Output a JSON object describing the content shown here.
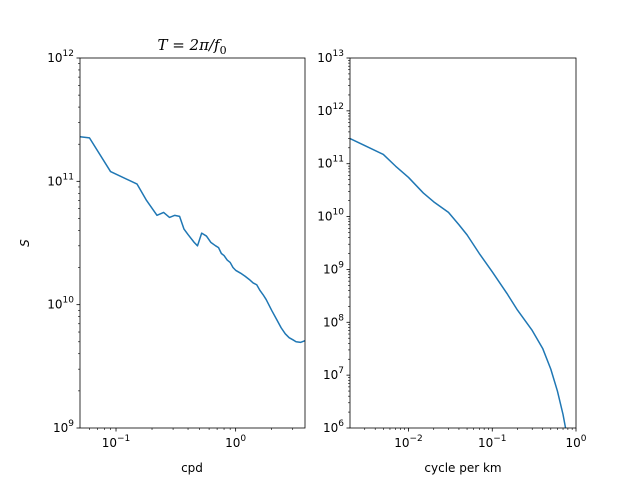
{
  "chart_data": [
    {
      "type": "line",
      "title": "T = 2π/f₀",
      "xlabel": "cpd",
      "ylabel": "S",
      "xscale": "log",
      "yscale": "log",
      "xlim": [
        0.05,
        3.8
      ],
      "ylim": [
        1000000000.0,
        1000000000000.0
      ],
      "grid": false,
      "color": "#1f77b4",
      "x_ticks": [
        {
          "value": 0.1,
          "base": "10",
          "exp": "−1"
        },
        {
          "value": 1,
          "base": "10",
          "exp": "0"
        }
      ],
      "y_ticks": [
        {
          "value": 1000000000.0,
          "base": "10",
          "exp": "9"
        },
        {
          "value": 10000000000.0,
          "base": "10",
          "exp": "10"
        },
        {
          "value": 100000000000.0,
          "base": "10",
          "exp": "11"
        },
        {
          "value": 1000000000000.0,
          "base": "10",
          "exp": "12"
        }
      ],
      "series": [
        {
          "x": [
            0.05,
            0.06,
            0.09,
            0.15,
            0.18,
            0.22,
            0.25,
            0.28,
            0.31,
            0.34,
            0.37,
            0.4,
            0.45,
            0.48,
            0.52,
            0.57,
            0.62,
            0.68,
            0.72,
            0.76,
            0.8,
            0.85,
            0.9,
            0.95,
            1.0,
            1.1,
            1.2,
            1.3,
            1.4,
            1.5,
            1.6,
            1.7,
            1.8,
            2.0,
            2.2,
            2.4,
            2.6,
            2.8,
            3.0,
            3.2,
            3.5,
            3.8
          ],
          "y": [
            230000000000.0,
            225000000000.0,
            120000000000.0,
            95000000000.0,
            70000000000.0,
            53000000000.0,
            56000000000.0,
            51000000000.0,
            53000000000.0,
            52000000000.0,
            41000000000.0,
            37000000000.0,
            32000000000.0,
            30000000000.0,
            38000000000.0,
            36000000000.0,
            32000000000.0,
            30000000000.0,
            29000000000.0,
            26000000000.0,
            25000000000.0,
            23000000000.0,
            22000000000.0,
            20000000000.0,
            19000000000.0,
            18000000000.0,
            17000000000.0,
            16000000000.0,
            15000000000.0,
            14500000000.0,
            13000000000.0,
            12000000000.0,
            11000000000.0,
            9000000000.0,
            7600000000.0,
            6500000000.0,
            5800000000.0,
            5400000000.0,
            5200000000.0,
            5000000000.0,
            4950000000.0,
            5100000000.0
          ]
        }
      ]
    },
    {
      "type": "line",
      "title": "",
      "xlabel": "cycle per km",
      "ylabel": "",
      "xscale": "log",
      "yscale": "log",
      "xlim": [
        0.002,
        1
      ],
      "ylim": [
        1000000.0,
        10000000000000.0
      ],
      "grid": false,
      "color": "#1f77b4",
      "x_ticks": [
        {
          "value": 0.01,
          "base": "10",
          "exp": "−2"
        },
        {
          "value": 0.1,
          "base": "10",
          "exp": "−1"
        },
        {
          "value": 1,
          "base": "10",
          "exp": "0"
        }
      ],
      "y_ticks": [
        {
          "value": 1000000.0,
          "base": "10",
          "exp": "6"
        },
        {
          "value": 10000000.0,
          "base": "10",
          "exp": "7"
        },
        {
          "value": 100000000.0,
          "base": "10",
          "exp": "8"
        },
        {
          "value": 1000000000.0,
          "base": "10",
          "exp": "9"
        },
        {
          "value": 10000000000.0,
          "base": "10",
          "exp": "10"
        },
        {
          "value": 100000000000.0,
          "base": "10",
          "exp": "11"
        },
        {
          "value": 1000000000000.0,
          "base": "10",
          "exp": "12"
        },
        {
          "value": 10000000000000.0,
          "base": "10",
          "exp": "13"
        }
      ],
      "series": [
        {
          "x": [
            0.002,
            0.003,
            0.005,
            0.007,
            0.01,
            0.015,
            0.02,
            0.03,
            0.04,
            0.05,
            0.07,
            0.1,
            0.15,
            0.2,
            0.3,
            0.4,
            0.5,
            0.6,
            0.7,
            0.75
          ],
          "y": [
            300000000000.0,
            220000000000.0,
            150000000000.0,
            90000000000.0,
            55000000000.0,
            28000000000.0,
            19000000000.0,
            12000000000.0,
            7000000000.0,
            4500000000.0,
            2000000000.0,
            900000000.0,
            350000000.0,
            170000000.0,
            70000000.0,
            32000000.0,
            13000000.0,
            5000000.0,
            1800000.0,
            1000000.0
          ]
        }
      ]
    }
  ]
}
